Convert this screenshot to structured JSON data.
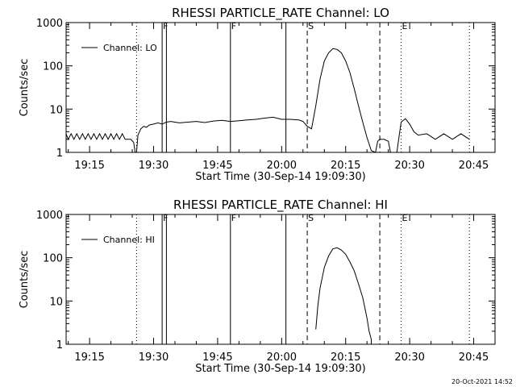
{
  "timestamp": "20-Oct-2021 14:52",
  "chart_data": [
    {
      "type": "line",
      "title": "RHESSI PARTICLE_RATE Channel: LO",
      "xlabel": "Start Time (30-Sep-14 19:09:30)",
      "ylabel": "Counts/sec",
      "yscale": "log",
      "ylim": [
        1,
        1000
      ],
      "xlim": [
        "19:09:30",
        "20:50:00"
      ],
      "x_tick_labels": [
        "19:15",
        "19:30",
        "19:45",
        "20:00",
        "20:15",
        "20:30",
        "20:45"
      ],
      "y_tick_labels": [
        "1",
        "10",
        "100",
        "1000"
      ],
      "legend": {
        "position": "top-left",
        "entries": [
          "Channel: LO"
        ]
      },
      "line_color": "#000000",
      "markers": [
        {
          "label": "F",
          "time": "19:32",
          "style": "solid"
        },
        {
          "label": "",
          "time": "19:33",
          "style": "solid"
        },
        {
          "label": "F",
          "time": "19:48",
          "style": "solid"
        },
        {
          "label": "",
          "time": "20:01",
          "style": "solid"
        },
        {
          "label": "S",
          "time": "20:06",
          "style": "dashed"
        },
        {
          "label": "",
          "time": "20:23",
          "style": "dashed"
        },
        {
          "label": "E",
          "time": "20:28",
          "style": "dotted"
        },
        {
          "label": "",
          "time": "19:26",
          "style": "dotted"
        },
        {
          "label": "",
          "time": "20:44",
          "style": "dotted"
        }
      ],
      "series": [
        {
          "x": [
            "19:09:30",
            "19:10:00",
            "19:10:40",
            "19:11:20",
            "19:12:00",
            "19:12:40",
            "19:13:20",
            "19:14:00",
            "19:14:40",
            "19:15:20",
            "19:16:00",
            "19:16:40",
            "19:17:20",
            "19:18:00",
            "19:18:40",
            "19:19:20",
            "19:20:00",
            "19:20:40",
            "19:21:20",
            "19:22:00",
            "19:22:40",
            "19:23:20",
            "19:24:00",
            "19:24:40",
            "19:25:20",
            "19:25:40",
            "19:26:00",
            "19:26:20",
            "19:27:00",
            "19:27:40",
            "19:28:20",
            "19:29:00",
            "19:30:00",
            "19:31:00",
            "19:32:00",
            "19:33:00",
            "19:34:00",
            "19:35:00",
            "19:36:00",
            "19:38:00",
            "19:40:00",
            "19:42:00",
            "19:44:00",
            "19:46:00",
            "19:48:00",
            "19:50:00",
            "19:52:00",
            "19:54:00",
            "19:56:00",
            "19:58:00",
            "20:00:00",
            "20:02:00",
            "20:04:00",
            "20:05:00",
            "20:06:00",
            "20:07:00",
            "20:08:00",
            "20:09:00",
            "20:10:00",
            "20:11:00",
            "20:12:00",
            "20:13:00",
            "20:14:00",
            "20:15:00",
            "20:16:00",
            "20:17:00",
            "20:18:00",
            "20:19:00",
            "20:20:00",
            "20:21:00",
            "20:22:00",
            "20:22:30",
            "20:23:00",
            "20:24:00",
            "20:25:00",
            "20:25:30",
            "20:26:00",
            "20:27:00",
            "20:28:00",
            "20:29:00",
            "20:30:00",
            "20:31:00",
            "20:32:00",
            "20:34:00",
            "20:36:00",
            "20:38:00",
            "20:40:00",
            "20:42:00",
            "20:44:00"
          ],
          "y": [
            2.7,
            2.0,
            2.7,
            2.0,
            2.7,
            2.0,
            2.7,
            2.0,
            2.7,
            2.0,
            2.7,
            2.0,
            2.7,
            2.0,
            2.7,
            2.0,
            2.7,
            2.0,
            2.7,
            2.0,
            2.7,
            2.0,
            2.0,
            2.0,
            1.7,
            1.0,
            1.0,
            2.5,
            3.5,
            4.0,
            3.8,
            4.3,
            4.5,
            4.8,
            4.5,
            5.0,
            5.2,
            5.0,
            4.8,
            5.0,
            5.2,
            4.9,
            5.3,
            5.5,
            5.2,
            5.4,
            5.6,
            5.8,
            6.2,
            6.5,
            5.8,
            5.8,
            5.6,
            5.2,
            4.0,
            3.5,
            12,
            50,
            130,
            200,
            250,
            240,
            200,
            130,
            70,
            30,
            12,
            5,
            2.2,
            1.1,
            1.0,
            1.8,
            2.0,
            2.0,
            1.8,
            1.0,
            1.0,
            1.0,
            5.0,
            6.0,
            4.5,
            3.0,
            2.5,
            2.7,
            2.0,
            2.7,
            2.0,
            2.7,
            2.0
          ]
        }
      ]
    },
    {
      "type": "line",
      "title": "RHESSI PARTICLE_RATE Channel: HI",
      "xlabel": "Start Time (30-Sep-14 19:09:30)",
      "ylabel": "Counts/sec",
      "yscale": "log",
      "ylim": [
        1,
        1000
      ],
      "xlim": [
        "19:09:30",
        "20:50:00"
      ],
      "x_tick_labels": [
        "19:15",
        "19:30",
        "19:45",
        "20:00",
        "20:15",
        "20:30",
        "20:45"
      ],
      "y_tick_labels": [
        "1",
        "10",
        "100",
        "1000"
      ],
      "legend": {
        "position": "top-left",
        "entries": [
          "Channel: HI"
        ]
      },
      "line_color": "#000000",
      "markers": [
        {
          "label": "F",
          "time": "19:32",
          "style": "solid"
        },
        {
          "label": "",
          "time": "19:33",
          "style": "solid"
        },
        {
          "label": "F",
          "time": "19:48",
          "style": "solid"
        },
        {
          "label": "",
          "time": "20:01",
          "style": "solid"
        },
        {
          "label": "S",
          "time": "20:06",
          "style": "dashed"
        },
        {
          "label": "",
          "time": "20:23",
          "style": "dashed"
        },
        {
          "label": "E",
          "time": "20:28",
          "style": "dotted"
        },
        {
          "label": "",
          "time": "19:26",
          "style": "dotted"
        },
        {
          "label": "",
          "time": "20:44",
          "style": "dotted"
        }
      ],
      "series": [
        {
          "x": [
            "20:08:00",
            "20:08:30",
            "20:09:00",
            "20:10:00",
            "20:11:00",
            "20:12:00",
            "20:13:00",
            "20:14:00",
            "20:15:00",
            "20:16:00",
            "20:17:00",
            "20:18:00",
            "20:19:00",
            "20:20:00",
            "20:20:30",
            "20:21:00",
            "20:21:00"
          ],
          "y": [
            2.2,
            8,
            20,
            60,
            110,
            160,
            170,
            150,
            120,
            80,
            50,
            25,
            12,
            4,
            2,
            1.3,
            1.0
          ]
        }
      ]
    }
  ]
}
